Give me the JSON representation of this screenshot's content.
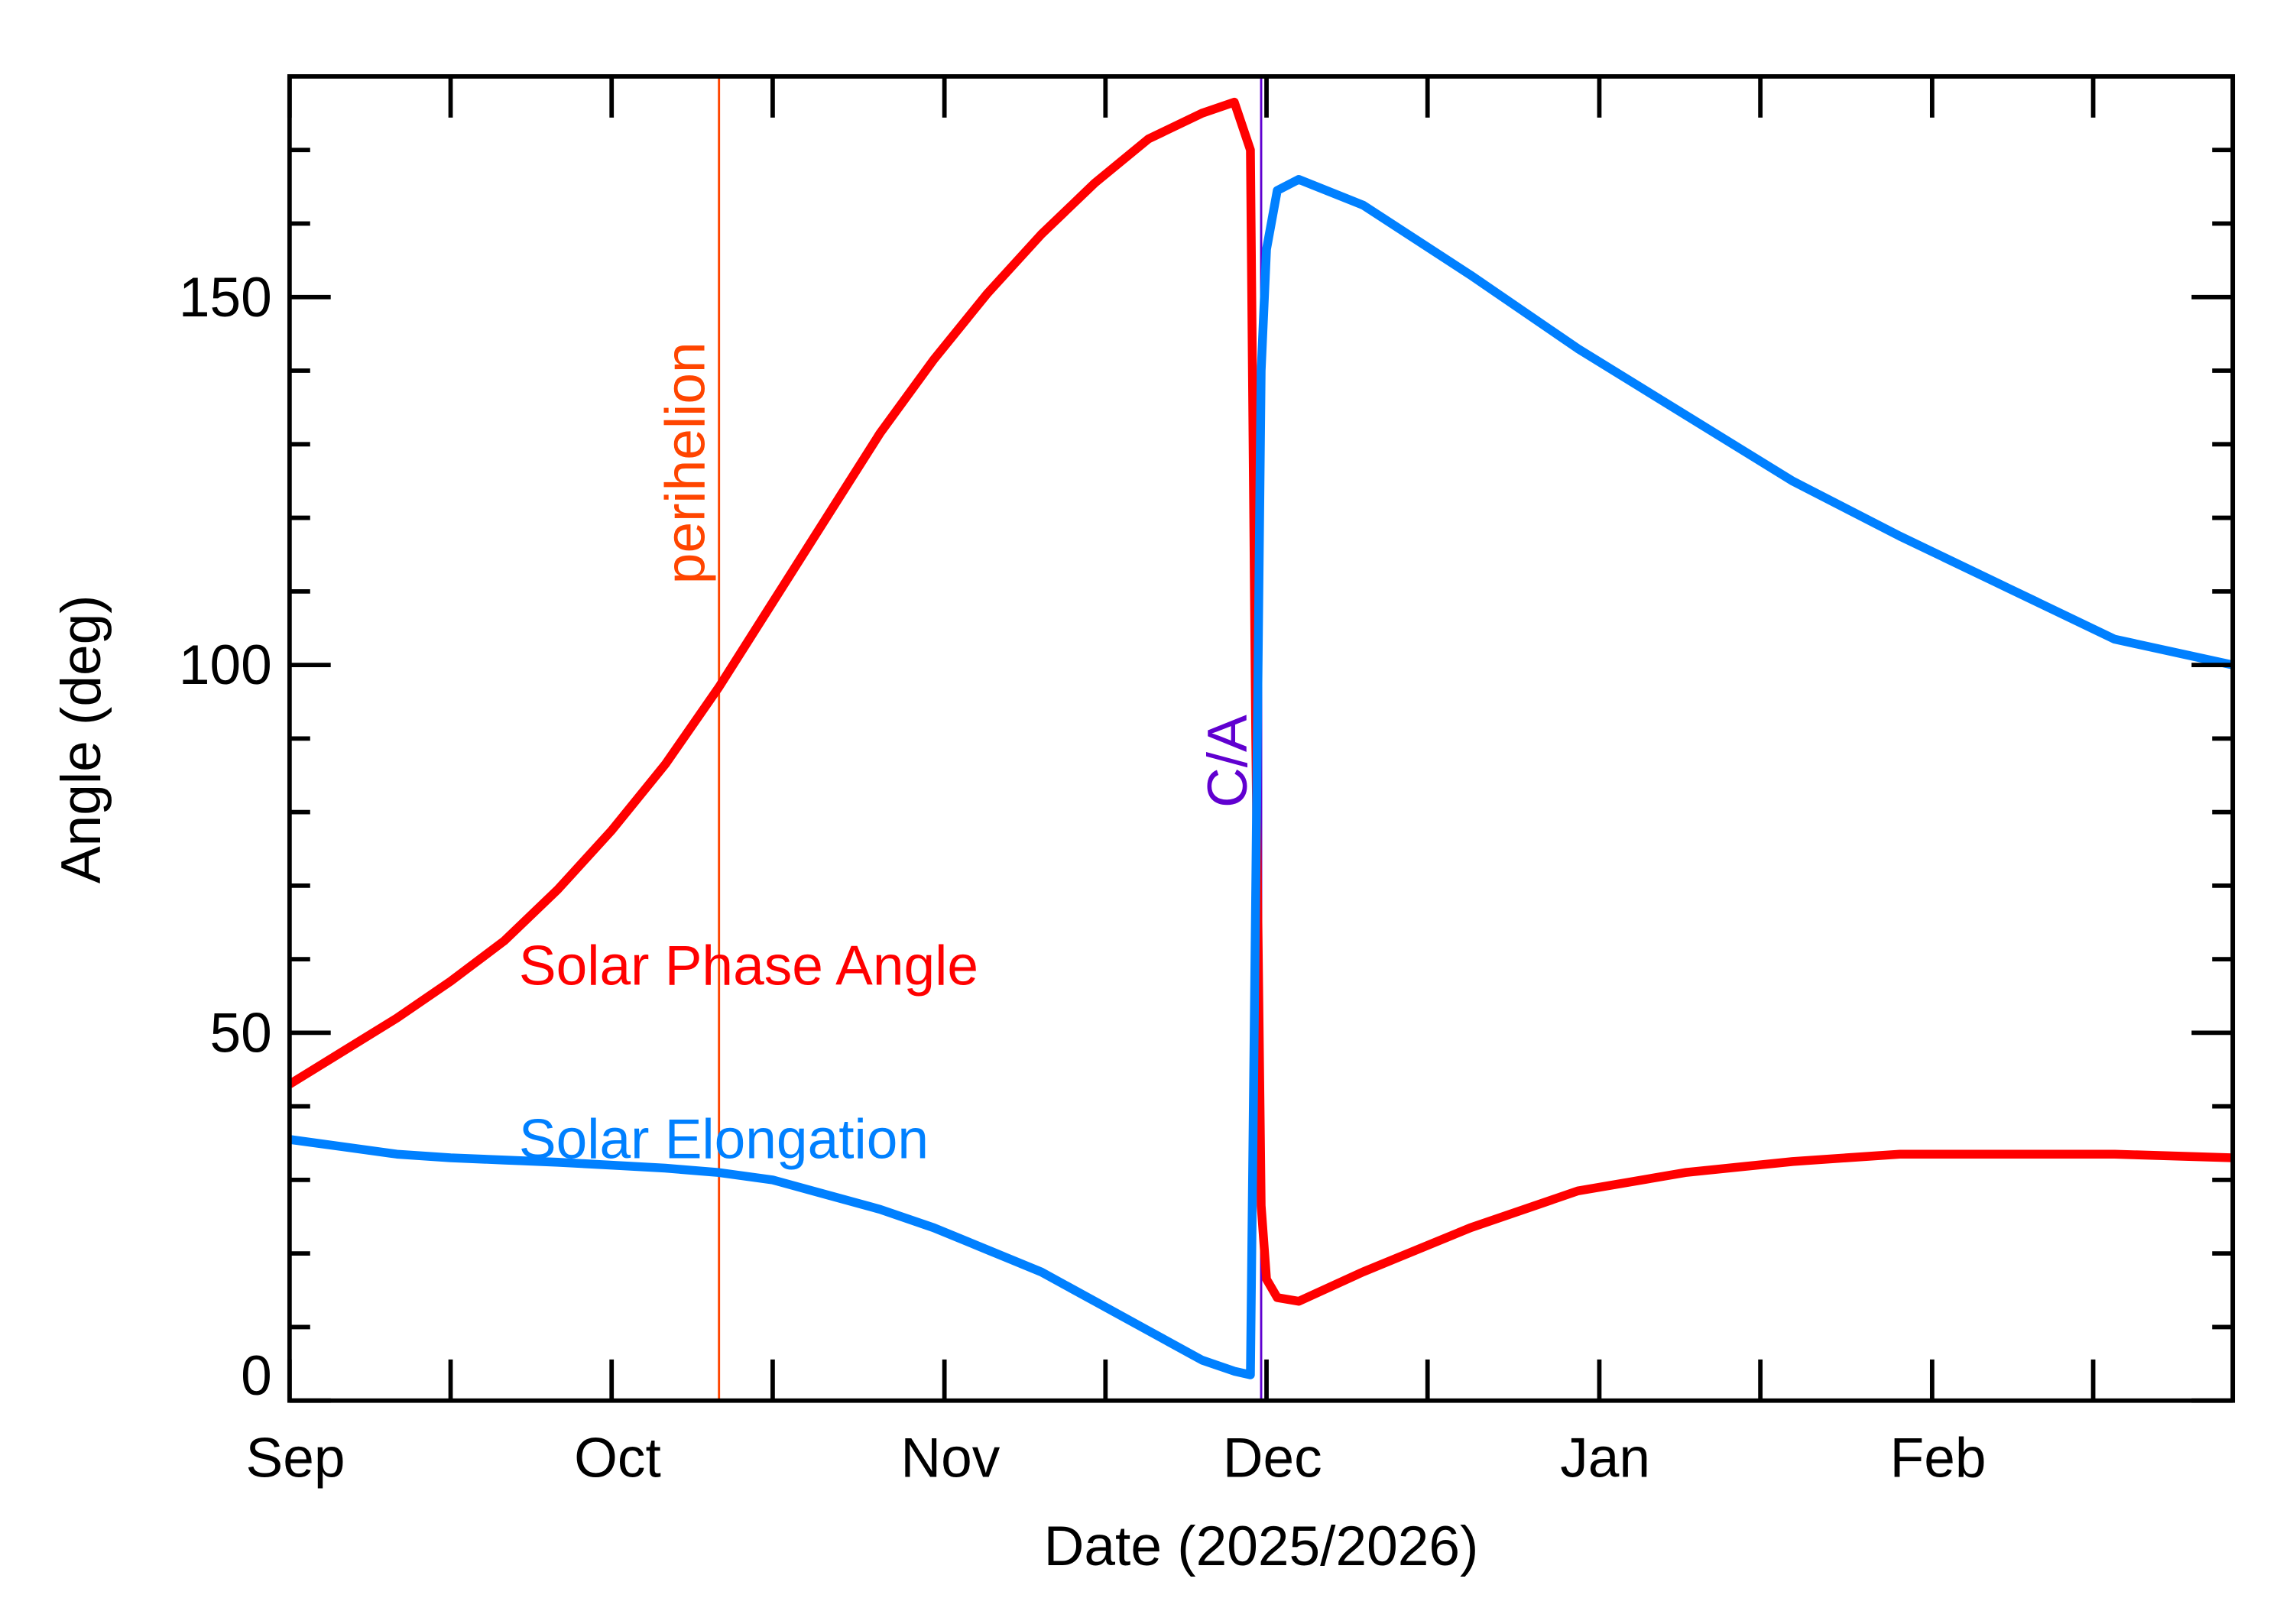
{
  "chart_data": {
    "type": "line",
    "x_label": "Date (2025/2026)",
    "y_label": "Angle (deg)",
    "xlim": [
      0,
      181
    ],
    "xticks": [
      {
        "value": 0,
        "label": "Sep"
      },
      {
        "value": 30,
        "label": "Oct"
      },
      {
        "value": 61,
        "label": "Nov"
      },
      {
        "value": 91,
        "label": "Dec"
      },
      {
        "value": 122,
        "label": "Jan"
      },
      {
        "value": 153,
        "label": "Feb"
      }
    ],
    "xminorticks": [
      15,
      45,
      76,
      106,
      137,
      168
    ],
    "ylim": [
      0,
      180
    ],
    "yticks": [
      0,
      50,
      100,
      150
    ],
    "yminorticks": [
      10,
      20,
      30,
      40,
      60,
      70,
      80,
      90,
      110,
      120,
      130,
      140,
      160,
      170
    ],
    "x": [
      0,
      5,
      10,
      15,
      20,
      25,
      30,
      35,
      40,
      45,
      50,
      55,
      60,
      65,
      70,
      75,
      80,
      85,
      88,
      89.5,
      90,
      90.5,
      91,
      92,
      94,
      100,
      110,
      120,
      130,
      140,
      150,
      160,
      170,
      181
    ],
    "series": [
      {
        "name": "Solar Phase Angle",
        "color": "#ff0000",
        "values": [
          43,
          47.5,
          52,
          57,
          62.5,
          69.5,
          77.5,
          86.5,
          97,
          108.5,
          120,
          131.5,
          141.5,
          150.5,
          158.5,
          165.5,
          171.5,
          175,
          176.5,
          170,
          90,
          26.5,
          16.5,
          14,
          13.5,
          17.5,
          23.5,
          28.5,
          31,
          32.5,
          33.5,
          33.5,
          33.5,
          33
        ]
      },
      {
        "name": "Solar Elongation",
        "color": "#0080ff",
        "values": [
          35.5,
          34.5,
          33.5,
          33,
          32.7,
          32.4,
          32,
          31.6,
          31,
          30,
          28,
          26,
          23.5,
          20.5,
          17.5,
          13.5,
          9.5,
          5.5,
          4,
          3.5,
          70,
          140,
          156.5,
          164.5,
          166,
          162.5,
          153,
          143,
          134,
          125,
          117.5,
          110.5,
          103.5,
          100
        ]
      }
    ],
    "annotations": [
      {
        "label": "perihelion",
        "x": 40,
        "color": "#ff4500"
      },
      {
        "label": "C/A",
        "x": 90.5,
        "color": "#6000d0"
      }
    ]
  }
}
